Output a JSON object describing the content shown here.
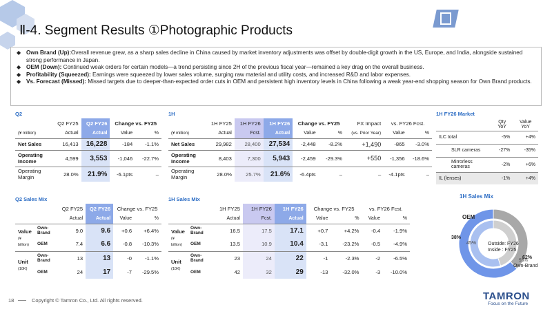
{
  "header": {
    "title": "Ⅱ-4. Segment Results ①Photographic Products"
  },
  "bullets": [
    {
      "head": "Own Brand (Up):",
      "text": "Overall revenue grew, as a sharp sales decline in China caused by market inventory adjustments was offset by double-digit growth in the US, Europe, and India, alongside sustained strong performance in Japan."
    },
    {
      "head": "OEM (Down):",
      "text": "Continued weak orders for certain models—a trend persisting since 2H of the previous fiscal year—remained a key drag on the overall business."
    },
    {
      "head": "Profitability (Squeezed):",
      "text": "Earnings were squeezed by lower sales volume, surging raw material and utility costs, and increased R&D and labor expenses."
    },
    {
      "head": "Vs. Forecast (Missed):",
      "text": "Missed targets due to deeper-than-expected order cuts in OEM and persistent high inventory levels in China following a weak year-end shopping season for Own Brand products."
    }
  ],
  "q2": {
    "label": "Q2",
    "unit": "(¥ million)",
    "h": [
      "Q2 FY25",
      "Q2 FY26",
      "Change vs. FY25"
    ],
    "s": [
      "Actual",
      "Actual",
      "Value",
      "%"
    ],
    "rows": [
      [
        "Net Sales",
        "16,413",
        "16,228",
        "-184",
        "-1.1%"
      ],
      [
        "Operating Income",
        "4,599",
        "3,553",
        "-1,046",
        "-22.7%"
      ],
      [
        "Operating Margin",
        "28.0%",
        "21.9%",
        "-6.1pts",
        "–"
      ]
    ]
  },
  "h1": {
    "label": "1H",
    "unit": "(¥ million)",
    "h": [
      "1H FY25",
      "1H FY26",
      "1H FY26",
      "Change vs. FY25",
      "FX Impact",
      "vs. FY26 Fcst."
    ],
    "s": [
      "Actual",
      "Fcst.",
      "Actual",
      "Value",
      "%",
      "(vs. Prior Year)",
      "Value",
      "%"
    ],
    "rows": [
      [
        "Net Sales",
        "29,982",
        "28,400",
        "27,534",
        "-2,448",
        "-8.2%",
        "+1,490",
        "-865",
        "-3.0%"
      ],
      [
        "Operating Income",
        "8,403",
        "7,300",
        "5,943",
        "-2,459",
        "-29.3%",
        "+550",
        "-1,356",
        "-18.6%"
      ],
      [
        "Operating Margin",
        "28.0%",
        "25.7%",
        "21.6%",
        "-6.4pts",
        "–",
        "–",
        "-4.1pts",
        "–"
      ]
    ]
  },
  "market": {
    "label": "1H FY26 Market",
    "h": [
      "Qty YoY",
      "Value YoY"
    ],
    "rows": [
      [
        "ILC total",
        "-5%",
        "+4%"
      ],
      [
        "SLR cameras",
        "-27%",
        "-35%"
      ],
      [
        "Mirrorless cameras",
        "-2%",
        "+6%"
      ],
      [
        "IL (lenses)",
        "-1%",
        "+4%"
      ]
    ]
  },
  "q2mix": {
    "label": "Q2 Sales Mix",
    "h": [
      "Q2 FY25",
      "Q2 FY26",
      "Change vs. FY25"
    ],
    "s": [
      "Actual",
      "Actual",
      "Value",
      "%"
    ],
    "groups": [
      {
        "name": "Value",
        "unit": "(¥ billion)",
        "rows": [
          [
            "Own-Brand",
            "9.0",
            "9.6",
            "+0.6",
            "+6.4%"
          ],
          [
            "OEM",
            "7.4",
            "6.6",
            "-0.8",
            "-10.3%"
          ]
        ]
      },
      {
        "name": "Unit",
        "unit": "(10K)",
        "rows": [
          [
            "Own-Brand",
            "13",
            "13",
            "-0",
            "-1.1%"
          ],
          [
            "OEM",
            "24",
            "17",
            "-7",
            "-29.5%"
          ]
        ]
      }
    ]
  },
  "h1mix": {
    "label": "1H Sales Mix",
    "h": [
      "1H FY25",
      "1H FY26",
      "1H FY26",
      "Change vs. FY25",
      "vs. FY26 Fcst."
    ],
    "s": [
      "Actual",
      "Fcst.",
      "Actual",
      "Value",
      "%",
      "Value",
      "%"
    ],
    "groups": [
      {
        "name": "Value",
        "unit": "(¥ billion)",
        "rows": [
          [
            "Own-Brand",
            "16.5",
            "17.5",
            "17.1",
            "+0.7",
            "+4.2%",
            "-0.4",
            "-1.9%"
          ],
          [
            "OEM",
            "13.5",
            "10.9",
            "10.4",
            "-3.1",
            "-23.2%",
            "-0.5",
            "-4.9%"
          ]
        ]
      },
      {
        "name": "Unit",
        "unit": "(10K)",
        "rows": [
          [
            "Own-Brand",
            "23",
            "24",
            "22",
            "-1",
            "-2.3%",
            "-2",
            "-6.5%"
          ],
          [
            "OEM",
            "42",
            "32",
            "29",
            "-13",
            "-32.0%",
            "-3",
            "-10.0%"
          ]
        ]
      }
    ]
  },
  "donut": {
    "title": "1H Sales Mix",
    "oem": "OEM",
    "own": "Own-Brand",
    "center1": "Outside: FY26",
    "center2": "Inside : FY25",
    "outer_oem": "38%",
    "outer_own": "62%",
    "inner_oem": "45%",
    "inner_own": "55%"
  },
  "chart_data": {
    "type": "pie",
    "title": "1H Sales Mix",
    "series": [
      {
        "name": "FY26",
        "values": [
          38,
          62
        ]
      },
      {
        "name": "FY25",
        "values": [
          45,
          55
        ]
      }
    ],
    "categories": [
      "OEM",
      "Own-Brand"
    ],
    "colors": {
      "own": "#6f95e8",
      "oem": "#a8a8a8"
    }
  },
  "footer": {
    "page": "18",
    "copyright": "Copyright © Tamron Co., Ltd. All rights reserved.",
    "logo": "TAMRON",
    "tagline": "Focus on the Future"
  }
}
